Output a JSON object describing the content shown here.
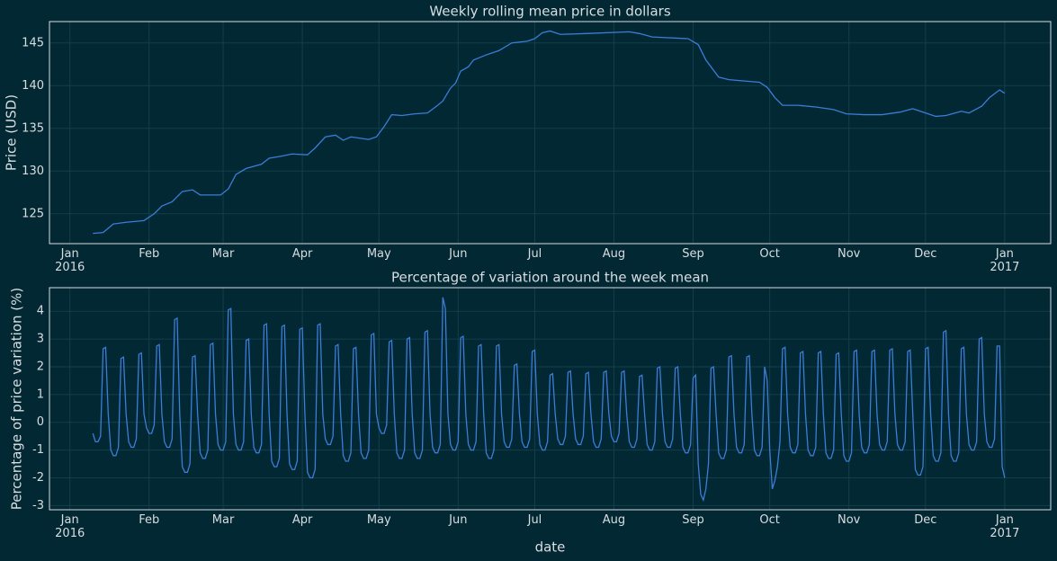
{
  "chart_data": [
    {
      "type": "line",
      "title": "Weekly rolling mean price in dollars",
      "ylabel": "Price (USD)",
      "color": "#3b7dd8",
      "grid": true,
      "xlim": [
        -8,
        384
      ],
      "ylim": [
        121.5,
        147.5
      ],
      "xticks": [
        {
          "value": 0,
          "label": "Jan\n2016"
        },
        {
          "value": 31,
          "label": "Feb"
        },
        {
          "value": 60,
          "label": "Mar"
        },
        {
          "value": 91,
          "label": "Apr"
        },
        {
          "value": 121,
          "label": "May"
        },
        {
          "value": 152,
          "label": "Jun"
        },
        {
          "value": 182,
          "label": "Jul"
        },
        {
          "value": 213,
          "label": "Aug"
        },
        {
          "value": 244,
          "label": "Sep"
        },
        {
          "value": 274,
          "label": "Oct"
        },
        {
          "value": 305,
          "label": "Nov"
        },
        {
          "value": 335,
          "label": "Dec"
        },
        {
          "value": 366,
          "label": "Jan\n2017"
        }
      ],
      "yticks": [
        125,
        130,
        135,
        140,
        145
      ],
      "x": [
        9,
        13,
        17,
        22,
        29,
        33,
        36,
        40,
        44,
        48,
        51,
        59,
        62,
        65,
        69,
        75,
        78,
        82,
        87,
        93,
        96,
        100,
        104,
        107,
        110,
        117,
        120,
        123,
        126,
        130,
        135,
        140,
        144,
        146,
        149,
        151,
        153,
        156,
        158,
        163,
        168,
        173,
        179,
        182,
        185,
        188,
        192,
        202,
        219,
        223,
        228,
        242,
        246,
        249,
        254,
        258,
        270,
        273,
        276,
        279,
        285,
        292,
        299,
        304,
        311,
        318,
        325,
        330,
        334,
        339,
        343,
        349,
        352,
        357,
        360,
        364,
        366
      ],
      "values": [
        122.7,
        122.8,
        123.8,
        124.0,
        124.2,
        125.0,
        125.9,
        126.4,
        127.6,
        127.8,
        127.2,
        127.2,
        127.9,
        129.6,
        130.3,
        130.8,
        131.5,
        131.7,
        132.0,
        131.9,
        132.7,
        134.0,
        134.2,
        133.6,
        134.0,
        133.7,
        134.0,
        135.2,
        136.6,
        136.5,
        136.7,
        136.8,
        137.7,
        138.2,
        139.7,
        140.3,
        141.7,
        142.2,
        143.0,
        143.6,
        144.1,
        145.0,
        145.2,
        145.5,
        146.2,
        146.4,
        146.0,
        146.1,
        146.3,
        146.1,
        145.7,
        145.5,
        144.8,
        143.0,
        141.0,
        140.7,
        140.4,
        139.8,
        138.6,
        137.7,
        137.7,
        137.5,
        137.2,
        136.7,
        136.6,
        136.6,
        136.9,
        137.3,
        136.9,
        136.4,
        136.5,
        137.0,
        136.8,
        137.6,
        138.6,
        139.5,
        139.1
      ]
    },
    {
      "type": "line",
      "title": "Percentage of variation around the week mean",
      "ylabel": "Percentage of price variation (%)",
      "xlabel": "date",
      "color": "#3b7dd8",
      "grid": true,
      "xlim": [
        -8,
        384
      ],
      "ylim": [
        -3.15,
        4.85
      ],
      "xticks": [
        {
          "value": 0,
          "label": "Jan\n2016"
        },
        {
          "value": 31,
          "label": "Feb"
        },
        {
          "value": 60,
          "label": "Mar"
        },
        {
          "value": 91,
          "label": "Apr"
        },
        {
          "value": 121,
          "label": "May"
        },
        {
          "value": 152,
          "label": "Jun"
        },
        {
          "value": 182,
          "label": "Jul"
        },
        {
          "value": 213,
          "label": "Aug"
        },
        {
          "value": 244,
          "label": "Sep"
        },
        {
          "value": 274,
          "label": "Oct"
        },
        {
          "value": 305,
          "label": "Nov"
        },
        {
          "value": 335,
          "label": "Dec"
        },
        {
          "value": 366,
          "label": "Jan\n2017"
        }
      ],
      "yticks": [
        -3,
        -2,
        -1,
        0,
        1,
        2,
        3,
        4
      ],
      "x": [
        9,
        10,
        11,
        12,
        13,
        14,
        15,
        16,
        17,
        18,
        19,
        20,
        21,
        22,
        23,
        24,
        25,
        26,
        27,
        28,
        29,
        30,
        31,
        32,
        33,
        34,
        35,
        36,
        37,
        38,
        39,
        40,
        41,
        42,
        43,
        44,
        45,
        46,
        47,
        48,
        49,
        50,
        51,
        52,
        53,
        54,
        55,
        56,
        57,
        58,
        59,
        60,
        61,
        62,
        63,
        64,
        65,
        66,
        67,
        68,
        69,
        70,
        71,
        72,
        73,
        74,
        75,
        76,
        77,
        78,
        79,
        80,
        81,
        82,
        83,
        84,
        85,
        86,
        87,
        88,
        89,
        90,
        91,
        92,
        93,
        94,
        95,
        96,
        97,
        98,
        99,
        100,
        101,
        102,
        103,
        104,
        105,
        106,
        107,
        108,
        109,
        110,
        111,
        112,
        113,
        114,
        115,
        116,
        117,
        118,
        119,
        120,
        121,
        122,
        123,
        124,
        125,
        126,
        127,
        128,
        129,
        130,
        131,
        132,
        133,
        134,
        135,
        136,
        137,
        138,
        139,
        140,
        141,
        142,
        143,
        144,
        145,
        146,
        147,
        148,
        149,
        150,
        151,
        152,
        153,
        154,
        155,
        156,
        157,
        158,
        159,
        160,
        161,
        162,
        163,
        164,
        165,
        166,
        167,
        168,
        169,
        170,
        171,
        172,
        173,
        174,
        175,
        176,
        177,
        178,
        179,
        180,
        181,
        182,
        183,
        184,
        185,
        186,
        187,
        188,
        189,
        190,
        191,
        192,
        193,
        194,
        195,
        196,
        197,
        198,
        199,
        200,
        201,
        202,
        203,
        204,
        205,
        206,
        207,
        208,
        209,
        210,
        211,
        212,
        213,
        214,
        215,
        216,
        217,
        218,
        219,
        220,
        221,
        222,
        223,
        224,
        225,
        226,
        227,
        228,
        229,
        230,
        231,
        232,
        233,
        234,
        235,
        236,
        237,
        238,
        239,
        240,
        241,
        242,
        243,
        244,
        245,
        246,
        247,
        248,
        249,
        250,
        251,
        252,
        253,
        254,
        255,
        256,
        257,
        258,
        259,
        260,
        261,
        262,
        263,
        264,
        265,
        266,
        267,
        268,
        269,
        270,
        271,
        272,
        273,
        274,
        275,
        276,
        277,
        278,
        279,
        280,
        281,
        282,
        283,
        284,
        285,
        286,
        287,
        288,
        289,
        290,
        291,
        292,
        293,
        294,
        295,
        296,
        297,
        298,
        299,
        300,
        301,
        302,
        303,
        304,
        305,
        306,
        307,
        308,
        309,
        310,
        311,
        312,
        313,
        314,
        315,
        316,
        317,
        318,
        319,
        320,
        321,
        322,
        323,
        324,
        325,
        326,
        327,
        328,
        329,
        330,
        331,
        332,
        333,
        334,
        335,
        336,
        337,
        338,
        339,
        340,
        341,
        342,
        343,
        344,
        345,
        346,
        347,
        348,
        349,
        350,
        351,
        352,
        353,
        354,
        355,
        356,
        357,
        358,
        359,
        360,
        361,
        362,
        363,
        364,
        365,
        366
      ],
      "values": [
        -0.4,
        -0.7,
        -0.7,
        -0.5,
        2.65,
        2.7,
        0.3,
        -1.0,
        -1.2,
        -1.2,
        -0.9,
        2.3,
        2.35,
        0.3,
        -0.7,
        -0.9,
        -0.9,
        -0.6,
        2.45,
        2.5,
        0.3,
        -0.2,
        -0.4,
        -0.4,
        -0.1,
        2.75,
        2.8,
        0.3,
        -0.7,
        -0.9,
        -0.9,
        -0.6,
        3.7,
        3.75,
        0.3,
        -1.6,
        -1.8,
        -1.8,
        -1.5,
        2.35,
        2.4,
        0.3,
        -1.1,
        -1.3,
        -1.3,
        -1.0,
        2.8,
        2.85,
        0.3,
        -0.8,
        -1.0,
        -1.0,
        -0.7,
        4.05,
        4.1,
        0.3,
        -0.8,
        -1.0,
        -1.0,
        -0.7,
        2.95,
        3.0,
        0.3,
        -0.9,
        -1.1,
        -1.1,
        -0.8,
        3.5,
        3.55,
        0.3,
        -1.4,
        -1.6,
        -1.6,
        -1.3,
        3.45,
        3.5,
        0.3,
        -1.5,
        -1.7,
        -1.7,
        -1.4,
        3.35,
        3.4,
        0.3,
        -1.8,
        -2.0,
        -2.0,
        -1.7,
        3.5,
        3.55,
        0.3,
        -0.6,
        -0.8,
        -0.8,
        -0.5,
        2.75,
        2.8,
        0.3,
        -1.2,
        -1.4,
        -1.4,
        -1.1,
        2.65,
        2.7,
        0.3,
        -1.1,
        -1.3,
        -1.3,
        -1.0,
        3.15,
        3.2,
        0.3,
        -0.2,
        -0.4,
        -0.4,
        -0.1,
        2.9,
        2.95,
        0.3,
        -1.1,
        -1.3,
        -1.3,
        -1.0,
        3.0,
        3.05,
        0.3,
        -1.1,
        -1.3,
        -1.3,
        -1.0,
        3.25,
        3.3,
        0.3,
        -0.9,
        -1.1,
        -1.1,
        -0.8,
        4.5,
        4.1,
        0.3,
        -0.8,
        -1.0,
        -1.0,
        -0.7,
        3.05,
        3.1,
        0.3,
        -0.8,
        -1.0,
        -1.0,
        -0.7,
        2.75,
        2.8,
        0.3,
        -1.1,
        -1.3,
        -1.3,
        -1.0,
        2.75,
        2.8,
        0.3,
        -0.7,
        -0.9,
        -0.9,
        -0.6,
        2.05,
        2.1,
        0.3,
        -0.7,
        -0.9,
        -0.9,
        -0.6,
        2.55,
        2.6,
        0.3,
        -0.8,
        -1.0,
        -1.0,
        -0.7,
        1.7,
        1.75,
        0.3,
        -0.6,
        -0.8,
        -0.8,
        -0.5,
        1.8,
        1.85,
        0.3,
        -0.6,
        -0.8,
        -0.8,
        -0.5,
        1.75,
        1.8,
        0.3,
        -0.7,
        -0.9,
        -0.9,
        -0.6,
        1.8,
        1.85,
        0.3,
        -0.5,
        -0.7,
        -0.7,
        -0.4,
        1.8,
        1.85,
        0.3,
        -0.7,
        -0.9,
        -0.9,
        -0.6,
        1.65,
        1.7,
        0.3,
        -0.8,
        -1.0,
        -1.0,
        -0.7,
        1.95,
        2.0,
        0.3,
        -0.7,
        -0.9,
        -0.9,
        -0.6,
        1.95,
        2.0,
        0.3,
        -0.9,
        -1.1,
        -1.1,
        -0.8,
        1.6,
        1.7,
        -1.5,
        -2.6,
        -2.8,
        -2.4,
        -1.5,
        1.95,
        2.0,
        0.3,
        -1.1,
        -1.3,
        -1.3,
        -1.0,
        2.35,
        2.4,
        0.3,
        -0.9,
        -1.1,
        -1.1,
        -0.8,
        2.35,
        2.4,
        0.3,
        -1.0,
        -1.2,
        -1.2,
        -0.9,
        2.0,
        1.5,
        -1.0,
        -2.4,
        -2.1,
        -1.6,
        -0.7,
        2.65,
        2.7,
        0.3,
        -0.9,
        -1.1,
        -1.1,
        -0.8,
        2.5,
        2.55,
        0.3,
        -1.0,
        -1.2,
        -1.2,
        -0.9,
        2.5,
        2.55,
        0.3,
        -1.1,
        -1.3,
        -1.3,
        -1.0,
        2.45,
        2.5,
        0.3,
        -1.2,
        -1.4,
        -1.4,
        -1.1,
        2.55,
        2.6,
        0.3,
        -0.9,
        -1.1,
        -1.1,
        -0.8,
        2.55,
        2.6,
        0.3,
        -0.8,
        -1.0,
        -1.0,
        -0.7,
        2.6,
        2.65,
        0.3,
        -0.8,
        -1.0,
        -1.0,
        -0.7,
        2.55,
        2.6,
        0.3,
        -1.7,
        -1.9,
        -1.9,
        -1.6,
        2.65,
        2.7,
        0.3,
        -1.2,
        -1.4,
        -1.4,
        -1.1,
        3.25,
        3.3,
        0.3,
        -1.2,
        -1.4,
        -1.4,
        -1.1,
        2.65,
        2.7,
        0.3,
        -0.8,
        -1.0,
        -1.0,
        -0.7,
        3.0,
        3.05,
        0.3,
        -0.7,
        -0.9,
        -0.9,
        -0.6,
        2.75,
        2.75,
        -1.6,
        -2.0
      ]
    }
  ]
}
